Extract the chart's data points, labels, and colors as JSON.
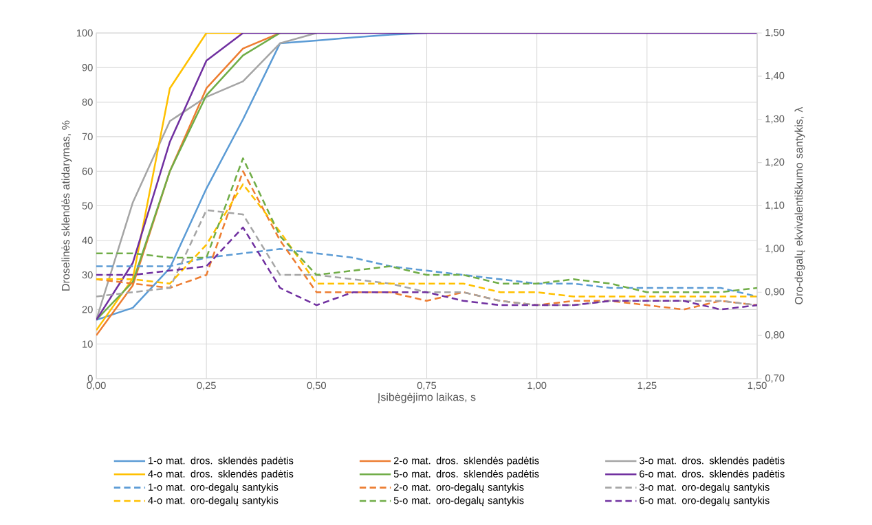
{
  "chart_data": {
    "type": "line",
    "xlabel": "Įsibėgėjimo laikas, s",
    "ylabel": "Droselinės sklendės atidarymas, %",
    "y2label": "Oro-degalų ekvivalentiškumo santykis, λ",
    "x": [
      0,
      0.083,
      0.167,
      0.25,
      0.333,
      0.417,
      0.5,
      0.583,
      0.667,
      0.75,
      0.833,
      0.917,
      1.0,
      1.083,
      1.167,
      1.25,
      1.333,
      1.417,
      1.5
    ],
    "xlim": [
      0,
      1.5
    ],
    "ylim": [
      0,
      100
    ],
    "y2lim": [
      0.7,
      1.5
    ],
    "xticks": [
      {
        "value": 0,
        "label": "0,00"
      },
      {
        "value": 0.25,
        "label": "0,25"
      },
      {
        "value": 0.5,
        "label": "0,50"
      },
      {
        "value": 0.75,
        "label": "0,75"
      },
      {
        "value": 1.0,
        "label": "1,00"
      },
      {
        "value": 1.25,
        "label": "1,25"
      },
      {
        "value": 1.5,
        "label": "1,50"
      }
    ],
    "yticks": [
      0,
      10,
      20,
      30,
      40,
      50,
      60,
      70,
      80,
      90,
      100
    ],
    "y2ticks": [
      {
        "value": 0.7,
        "label": "0,70"
      },
      {
        "value": 0.8,
        "label": "0,80"
      },
      {
        "value": 0.9,
        "label": "0,90"
      },
      {
        "value": 1.0,
        "label": "1,00"
      },
      {
        "value": 1.1,
        "label": "1,10"
      },
      {
        "value": 1.2,
        "label": "1,20"
      },
      {
        "value": 1.3,
        "label": "1,30"
      },
      {
        "value": 1.4,
        "label": "1,40"
      },
      {
        "value": 1.5,
        "label": "1,50"
      }
    ],
    "grid": true,
    "legend": "bottom",
    "series": [
      {
        "name": "1-o mat. dros. sklendės padėtis",
        "color": "#5b9bd5",
        "line_style": "solid",
        "values": [
          17,
          20.5,
          32,
          55,
          75,
          97,
          97.8,
          98.7,
          99.5,
          100,
          null,
          null,
          null,
          null,
          null,
          null,
          null,
          null,
          null
        ]
      },
      {
        "name": "2-o mat. dros. sklendės padėtis",
        "color": "#ed7d31",
        "line_style": "solid",
        "values": [
          12.5,
          27,
          60,
          84,
          95.5,
          100,
          null,
          null,
          null,
          null,
          null,
          null,
          null,
          null,
          null,
          null,
          null,
          null,
          null
        ]
      },
      {
        "name": "3-o mat. dros. sklendės padėtis",
        "color": "#a5a5a5",
        "line_style": "solid",
        "values": [
          17,
          51,
          74.5,
          81.5,
          86,
          97,
          100,
          null,
          null,
          null,
          null,
          null,
          null,
          null,
          null,
          null,
          null,
          null,
          null
        ]
      },
      {
        "name": "4-o mat. dros. sklendės padėtis",
        "color": "#ffc000",
        "line_style": "solid",
        "values": [
          14,
          29,
          84,
          100,
          100,
          null,
          null,
          null,
          null,
          null,
          null,
          null,
          null,
          null,
          null,
          null,
          null,
          null,
          null
        ]
      },
      {
        "name": "5-o mat. dros. sklendės padėtis",
        "color": "#70ad47",
        "line_style": "solid",
        "values": [
          17,
          28,
          60,
          82,
          93.5,
          100,
          100,
          null,
          null,
          null,
          null,
          null,
          null,
          null,
          null,
          null,
          null,
          null,
          null
        ]
      },
      {
        "name": "6-o mat. dros. sklendės padėtis",
        "color": "#7030a0",
        "line_style": "solid",
        "values": [
          17,
          33.5,
          68.5,
          92,
          100,
          100,
          100,
          100,
          100,
          100,
          100,
          100,
          100,
          100,
          100,
          100,
          100,
          100,
          100
        ]
      },
      {
        "name": "1-o mat. oro-degalų santykis",
        "color": "#5b9bd5",
        "line_style": "dashed",
        "axis": "y2",
        "values": [
          0.96,
          0.96,
          0.96,
          0.98,
          0.99,
          1.0,
          0.99,
          0.98,
          0.96,
          0.95,
          0.94,
          0.93,
          0.92,
          0.92,
          0.91,
          0.91,
          0.91,
          0.91,
          0.89
        ]
      },
      {
        "name": "2-o mat. oro-degalų santykis",
        "color": "#ed7d31",
        "line_style": "dashed",
        "axis": "y2",
        "values": [
          0.93,
          0.92,
          0.91,
          0.94,
          1.18,
          1.02,
          0.9,
          0.9,
          0.9,
          0.88,
          0.9,
          0.88,
          0.87,
          0.88,
          0.88,
          0.87,
          0.86,
          0.88,
          0.87
        ]
      },
      {
        "name": "3-o mat. oro-degalų santykis",
        "color": "#a5a5a5",
        "line_style": "dashed",
        "axis": "y2",
        "values": [
          0.89,
          0.9,
          0.91,
          1.09,
          1.08,
          0.94,
          0.94,
          0.93,
          0.92,
          0.9,
          0.9,
          0.88,
          0.87,
          0.87,
          0.88,
          0.88,
          0.88,
          0.88,
          0.87
        ]
      },
      {
        "name": "4-o mat. oro-degalų santykis",
        "color": "#ffc000",
        "line_style": "dashed",
        "axis": "y2",
        "values": [
          0.93,
          0.93,
          0.92,
          1.01,
          1.15,
          1.04,
          0.92,
          0.92,
          0.92,
          0.92,
          0.92,
          0.9,
          0.9,
          0.89,
          0.89,
          0.89,
          0.89,
          0.89,
          0.89
        ]
      },
      {
        "name": "5-o mat. oro-degalų santykis",
        "color": "#70ad47",
        "line_style": "dashed",
        "axis": "y2",
        "values": [
          0.99,
          0.99,
          0.98,
          0.98,
          1.21,
          1.03,
          0.94,
          0.95,
          0.96,
          0.94,
          0.94,
          0.92,
          0.92,
          0.93,
          0.92,
          0.9,
          0.9,
          0.9,
          0.91
        ]
      },
      {
        "name": "6-o mat. oro-degalų santykis",
        "color": "#7030a0",
        "line_style": "dashed",
        "axis": "y2",
        "values": [
          0.94,
          0.94,
          0.95,
          0.96,
          1.05,
          0.91,
          0.87,
          0.9,
          0.9,
          0.9,
          0.88,
          0.87,
          0.87,
          0.87,
          0.88,
          0.88,
          0.88,
          0.86,
          0.87
        ]
      }
    ]
  }
}
